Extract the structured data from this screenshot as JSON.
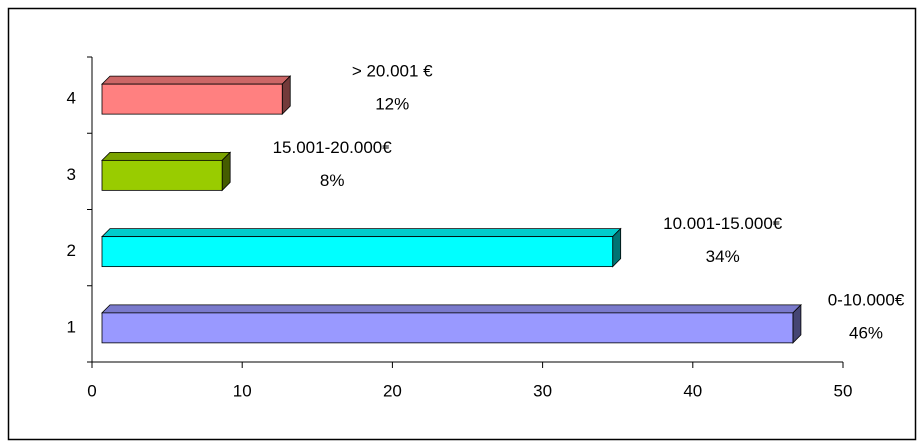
{
  "chart_data": {
    "type": "bar3d_horizontal",
    "categories": [
      "1",
      "2",
      "3",
      "4"
    ],
    "values": [
      46,
      34,
      8,
      12
    ],
    "value_labels": [
      "46%",
      "34%",
      "8%",
      "12%"
    ],
    "bar_names": [
      "0-10.000€",
      "10.001-15.000€",
      "15.001-20.000€",
      "> 20.001 €"
    ],
    "colors": [
      "#9999ff",
      "#00ffff",
      "#99cc00",
      "#ff8080"
    ],
    "xlim": [
      0,
      50
    ],
    "xticks": [
      0,
      10,
      20,
      30,
      40,
      50
    ]
  }
}
